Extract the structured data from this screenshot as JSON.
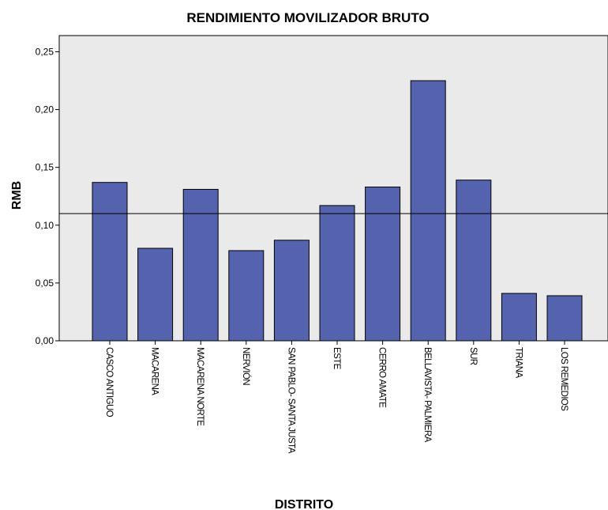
{
  "chart_data": {
    "type": "bar",
    "title": "RENDIMIENTO MOVILIZADOR BRUTO",
    "x_label": "DISTRITO",
    "y_label": "RMB",
    "categories": [
      "CASCO ANTIGUO",
      "MACARENA",
      "MACARENA NORTE",
      "NERVIÓN",
      "SAN PABLO- SANTA JUSTA",
      "ESTE",
      "CERRO AMATE",
      "BELLAVISTA- PALMIERA",
      "SUR",
      "TRIANA",
      "LOS REMEDIOS"
    ],
    "values": [
      0.137,
      0.08,
      0.131,
      0.078,
      0.087,
      0.117,
      0.133,
      0.225,
      0.139,
      0.041,
      0.039
    ],
    "color": "#5563ae",
    "reference_line": 0.11,
    "ylim": [
      0,
      0.264
    ],
    "yticks": [
      {
        "value": 0,
        "label": "0,00"
      },
      {
        "value": 0.05,
        "label": "0,05"
      },
      {
        "value": 0.1,
        "label": "0,10"
      },
      {
        "value": 0.15,
        "label": "0,15"
      },
      {
        "value": 0.2,
        "label": "0,20"
      },
      {
        "value": 0.25,
        "label": "0,25"
      }
    ],
    "grid": false
  }
}
